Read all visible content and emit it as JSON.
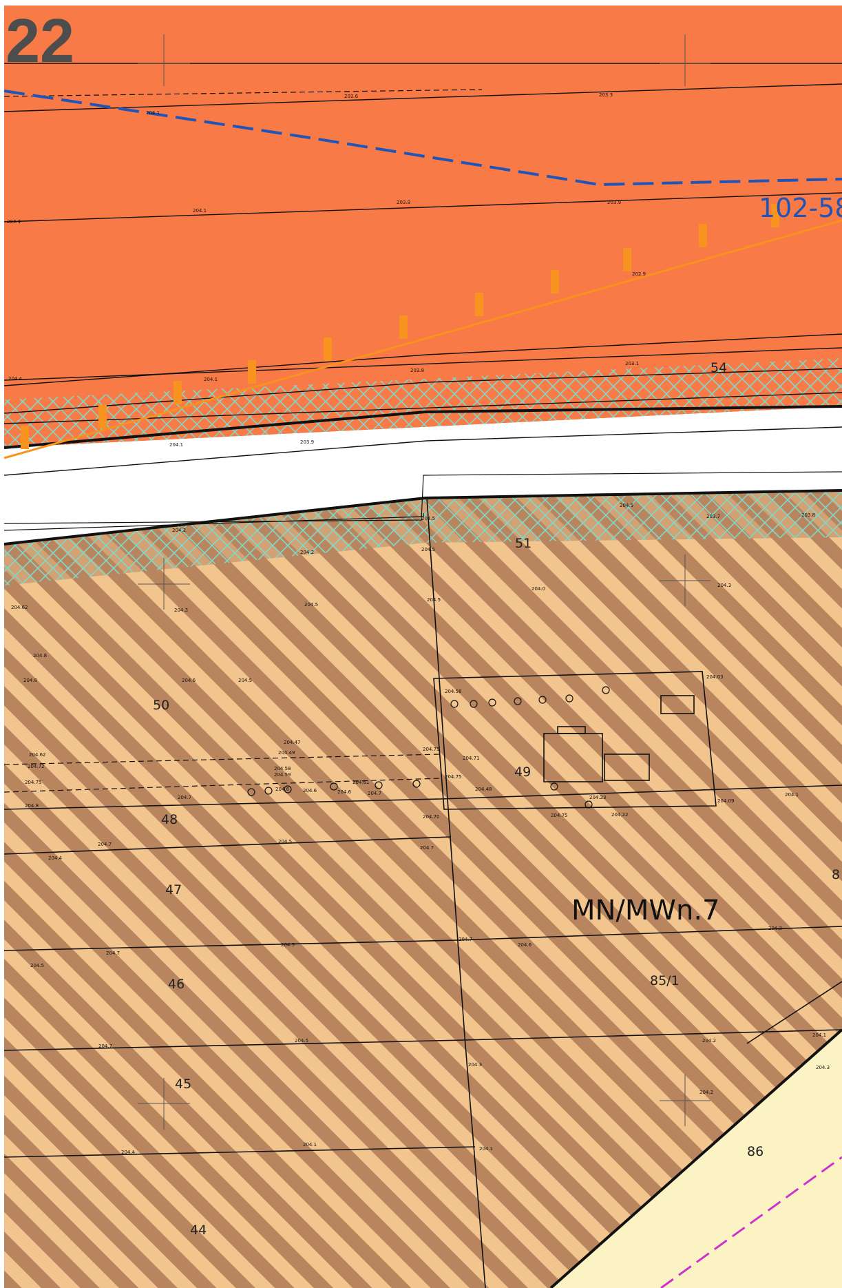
{
  "sheet_number": "22",
  "road_label": "102-58",
  "zone_label": "MN/MWn.7",
  "parcels": [
    "54",
    "51",
    "50",
    "49",
    "48",
    "47",
    "46",
    "45",
    "44",
    "85/1",
    "86",
    "8"
  ],
  "elevations": [
    "203.6",
    "203.3",
    "204.1",
    "204.4",
    "204.1",
    "203.8",
    "203.9",
    "202.9",
    "204.4",
    "204.1",
    "203.8",
    "203.1",
    "204.1",
    "203.9",
    "204.5",
    "204.5",
    "204.2",
    "204.2",
    "204.5",
    "203.7",
    "203.8",
    "204.5",
    "204.5",
    "204.0",
    "204.3",
    "204.62",
    "204.3",
    "204.8",
    "204.8",
    "204.6",
    "204.5",
    "204.03",
    "204.58",
    "204.62",
    "204.72",
    "204.75",
    "204.47",
    "204.49",
    "204.58",
    "204.59",
    "204.61",
    "204.75",
    "204.71",
    "204.75",
    "204.48",
    "204.7",
    "204.6",
    "204.6",
    "204.6",
    "204.7",
    "204.8",
    "204.7",
    "204.5",
    "204.4",
    "204.70",
    "204.75",
    "204.22",
    "204.23",
    "204.09",
    "204.1",
    "204.7",
    "204.5",
    "204.7",
    "204.6",
    "204.5",
    "204.7",
    "204.2",
    "204.7",
    "204.5",
    "204.2",
    "204.1",
    "204.3",
    "204.3",
    "204.2",
    "204.4",
    "204.1",
    "204.1"
  ],
  "colors": {
    "orange_zone": "#f77a47",
    "hatch_light": "#f2c48e",
    "hatch_dark": "#b8855f",
    "crosshatch": "#7fd9c8",
    "road_line": "#1f54b8",
    "pale_zone": "#fbf3c4",
    "magenta_line": "#cc33cc",
    "frame_line": "#111111"
  }
}
